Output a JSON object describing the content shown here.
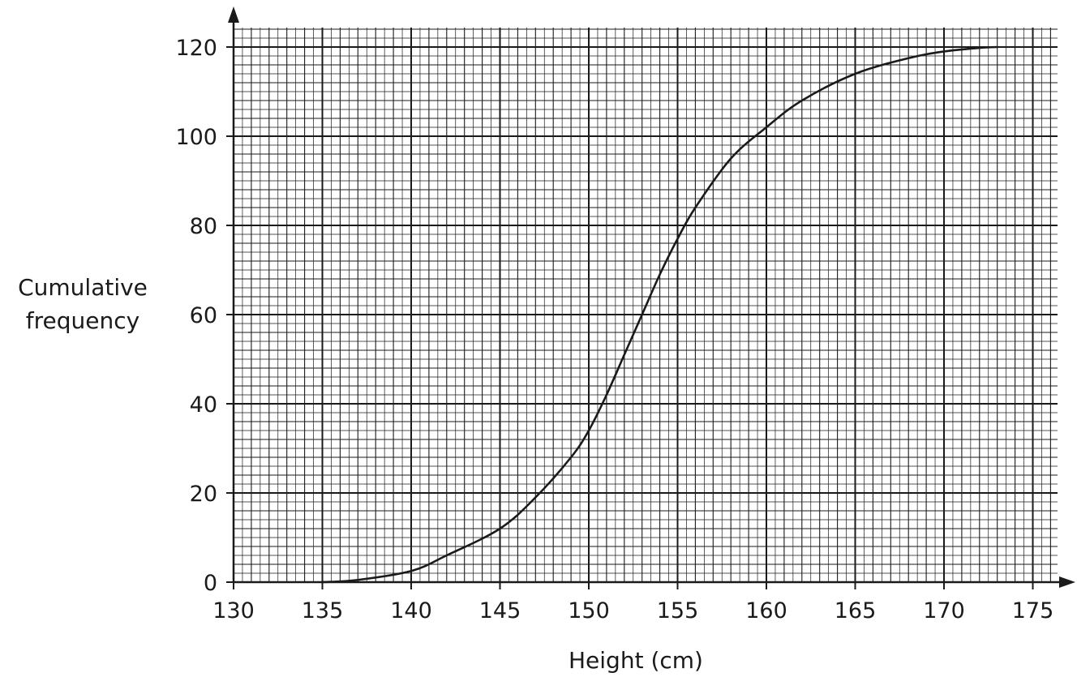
{
  "chart_data": {
    "type": "line",
    "title": "",
    "xlabel": "Height (cm)",
    "ylabel_lines": [
      "Cumulative",
      "frequency"
    ],
    "xlim": [
      130,
      176
    ],
    "ylim": [
      0,
      124
    ],
    "x_ticks": [
      130,
      135,
      140,
      145,
      150,
      155,
      160,
      165,
      170,
      175
    ],
    "y_ticks": [
      0,
      20,
      40,
      60,
      80,
      100,
      120
    ],
    "grid": {
      "major_x": 5,
      "major_y": 20,
      "mid_x": 1,
      "mid_y": 4,
      "minor_x": 0.5,
      "minor_y": 2
    },
    "series": [
      {
        "x": [
          135,
          137,
          140,
          142,
          145,
          147,
          149,
          150,
          151,
          152,
          153,
          154,
          155,
          156,
          158,
          160,
          162,
          165,
          168,
          170,
          172,
          173
        ],
        "y": [
          0,
          0.5,
          2.5,
          6,
          12,
          19,
          28,
          34,
          42,
          51,
          60,
          69,
          77,
          84,
          95,
          102,
          108,
          114,
          117.5,
          119,
          119.8,
          120
        ]
      }
    ],
    "colors": {
      "line": "#1a1a1a",
      "grid": "#1a1a1a"
    }
  }
}
